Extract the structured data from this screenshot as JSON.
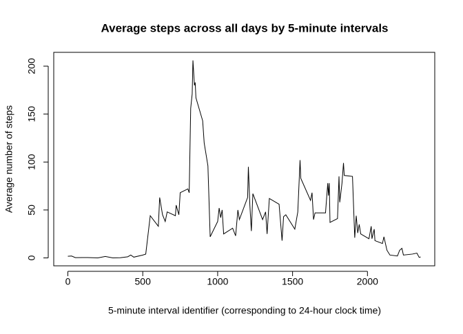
{
  "chart_data": {
    "type": "line",
    "title": "Average steps across all days by 5-minute intervals",
    "x_label": "5-minute interval identifier (corresponding to 24-hour clock time)",
    "y_label": "Average number of steps",
    "x": [
      0,
      25,
      50,
      100,
      150,
      200,
      250,
      300,
      350,
      400,
      420,
      440,
      500,
      520,
      550,
      604,
      613,
      632,
      650,
      663,
      718,
      723,
      741,
      750,
      801,
      810,
      820,
      830,
      835,
      845,
      850,
      855,
      900,
      910,
      935,
      950,
      1000,
      1010,
      1020,
      1030,
      1040,
      1100,
      1120,
      1135,
      1145,
      1200,
      1205,
      1215,
      1225,
      1235,
      1300,
      1320,
      1330,
      1345,
      1410,
      1430,
      1440,
      1455,
      1515,
      1535,
      1550,
      1555,
      1620,
      1630,
      1640,
      1650,
      1720,
      1735,
      1740,
      1745,
      1750,
      1800,
      1810,
      1815,
      1830,
      1840,
      1845,
      1900,
      1915,
      1925,
      1935,
      1945,
      1955,
      2010,
      2025,
      2030,
      2045,
      2050,
      2100,
      2110,
      2130,
      2150,
      2200,
      2215,
      2230,
      2240,
      2300,
      2330,
      2345,
      2355
    ],
    "series": [
      {
        "name": "steps",
        "color": "#000000",
        "values": [
          1.7,
          2,
          0.3,
          0.4,
          0.3,
          0,
          1.5,
          0,
          0.2,
          1.2,
          3,
          0.8,
          3,
          4,
          44,
          33,
          63,
          45,
          38,
          48,
          44,
          55,
          45,
          68,
          72,
          68,
          156,
          171,
          206,
          180,
          183,
          167,
          143,
          120,
          96,
          22,
          38,
          52,
          42,
          50,
          25,
          31,
          23,
          50,
          40,
          63,
          95,
          55,
          28,
          67,
          40,
          48,
          25,
          62,
          56,
          18,
          43,
          45,
          30,
          48,
          102,
          83,
          60,
          68,
          40,
          47,
          47,
          78,
          65,
          78,
          37,
          41,
          85,
          58,
          78,
          99,
          86,
          85,
          21,
          44,
          26,
          35,
          25,
          20,
          33,
          20,
          30,
          18,
          15,
          22,
          8,
          3,
          2,
          8,
          10,
          3,
          4,
          5,
          0.6,
          1
        ]
      }
    ],
    "xlim": [
      -94.2,
      2449.2
    ],
    "ylim": [
      -8.25,
      214.4
    ],
    "xticks": [
      0,
      500,
      1000,
      1500,
      2000
    ],
    "yticks": [
      0,
      50,
      100,
      150,
      200
    ]
  }
}
